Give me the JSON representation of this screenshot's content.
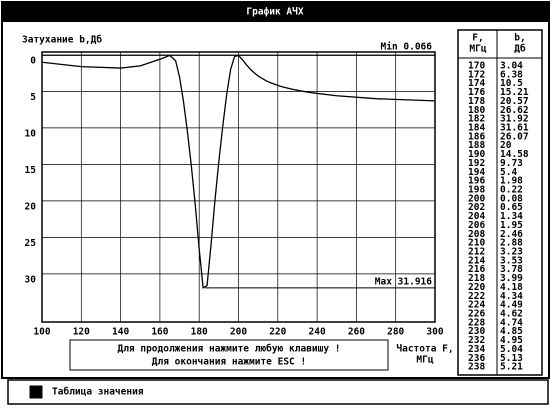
{
  "window": {
    "title": "График АЧХ",
    "status": "Таблица значения"
  },
  "chart_data": {
    "type": "line",
    "ylabel": "Затухание b,Дб",
    "xlabel": [
      "Частота F,",
      "МГц"
    ],
    "x": [
      100,
      120,
      140,
      150,
      160,
      165,
      168,
      170,
      172,
      174,
      176,
      178,
      180,
      182,
      184,
      186,
      188,
      190,
      192,
      194,
      196,
      198,
      200,
      202,
      204,
      206,
      208,
      210,
      212,
      214,
      216,
      218,
      220,
      222,
      224,
      226,
      228,
      230,
      232,
      234,
      236,
      238,
      250,
      270,
      300
    ],
    "values": [
      1.0,
      1.6,
      1.8,
      1.5,
      0.6,
      0.07,
      0.8,
      3.04,
      6.38,
      10.5,
      15.21,
      20.57,
      26.62,
      31.92,
      31.61,
      26.07,
      20,
      14.58,
      9.73,
      5.4,
      1.98,
      0.22,
      0.08,
      0.65,
      1.34,
      1.95,
      2.46,
      2.88,
      3.23,
      3.53,
      3.78,
      3.99,
      4.18,
      4.34,
      4.49,
      4.62,
      4.74,
      4.85,
      4.95,
      5.04,
      5.13,
      5.21,
      5.6,
      6.0,
      6.3
    ],
    "color": "#000000",
    "xlim": [
      100,
      300
    ],
    "ylim": [
      -0.4,
      36.6
    ],
    "y_inverted": true,
    "grid": true,
    "xticks": [
      100,
      120,
      140,
      160,
      180,
      200,
      220,
      240,
      260,
      280,
      300
    ],
    "yticks": [
      0,
      5,
      10,
      15,
      20,
      25,
      30
    ],
    "annotations": [
      {
        "text": "Min 0.066",
        "value": 0.066
      },
      {
        "text": "Max 31.916",
        "value": 31.916
      }
    ]
  },
  "messages": [
    "Для продолжения нажмите любую клавишу !",
    "Для окончания нажмите ESC !"
  ],
  "table": {
    "header": [
      [
        "F,",
        "МГц"
      ],
      [
        "b,",
        "Дб"
      ]
    ],
    "rows": [
      [
        "170",
        "3.04"
      ],
      [
        "172",
        "6.38"
      ],
      [
        "174",
        "10.5"
      ],
      [
        "176",
        "15.21"
      ],
      [
        "178",
        "20.57"
      ],
      [
        "180",
        "26.62"
      ],
      [
        "182",
        "31.92"
      ],
      [
        "184",
        "31.61"
      ],
      [
        "186",
        "26.07"
      ],
      [
        "188",
        "20"
      ],
      [
        "190",
        "14.58"
      ],
      [
        "192",
        "9.73"
      ],
      [
        "194",
        "5.4"
      ],
      [
        "196",
        "1.98"
      ],
      [
        "198",
        "0.22"
      ],
      [
        "200",
        "0.08"
      ],
      [
        "202",
        "0.65"
      ],
      [
        "204",
        "1.34"
      ],
      [
        "206",
        "1.95"
      ],
      [
        "208",
        "2.46"
      ],
      [
        "210",
        "2.88"
      ],
      [
        "212",
        "3.23"
      ],
      [
        "214",
        "3.53"
      ],
      [
        "216",
        "3.78"
      ],
      [
        "218",
        "3.99"
      ],
      [
        "220",
        "4.18"
      ],
      [
        "222",
        "4.34"
      ],
      [
        "224",
        "4.49"
      ],
      [
        "226",
        "4.62"
      ],
      [
        "228",
        "4.74"
      ],
      [
        "230",
        "4.85"
      ],
      [
        "232",
        "4.95"
      ],
      [
        "234",
        "5.04"
      ],
      [
        "236",
        "5.13"
      ],
      [
        "238",
        "5.21"
      ]
    ]
  }
}
